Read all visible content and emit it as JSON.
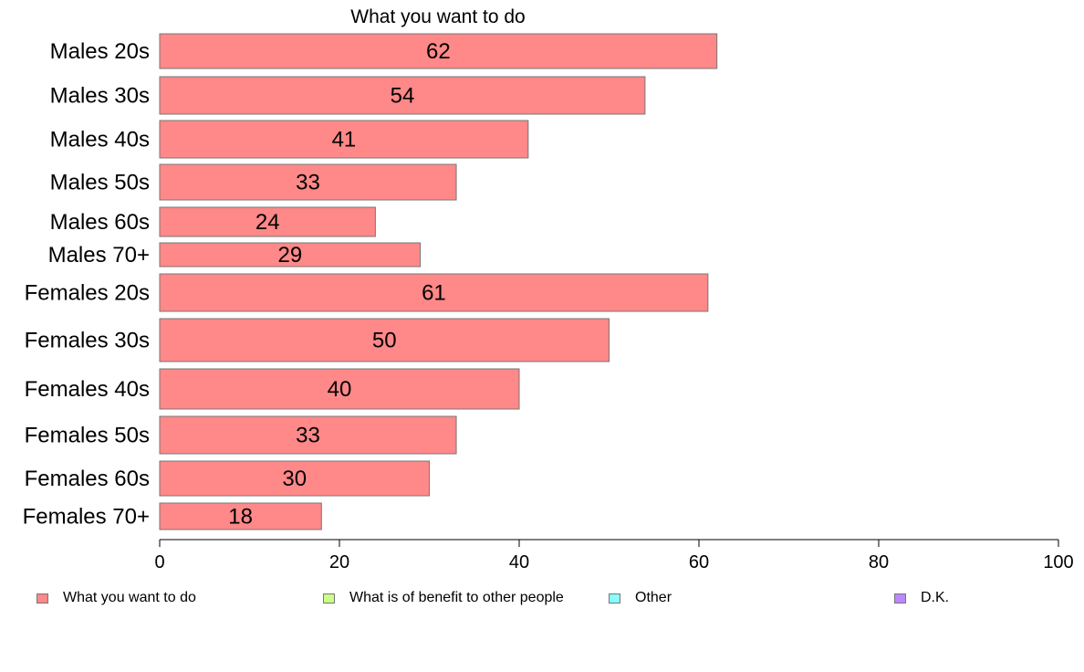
{
  "chart_data": {
    "type": "bar",
    "orientation": "horizontal",
    "title": "What you want to do",
    "categories": [
      "Males 20s",
      "Males 30s",
      "Males 40s",
      "Males 50s",
      "Males 60s",
      "Males 70+",
      "Females 20s",
      "Females 30s",
      "Females 40s",
      "Females 50s",
      "Females 60s",
      "Females 70+"
    ],
    "series": [
      {
        "name": "What you want to do",
        "color": "#ff8888",
        "values": [
          62,
          54,
          41,
          33,
          24,
          29,
          61,
          50,
          40,
          33,
          30,
          18
        ]
      }
    ],
    "data_labels": [
      "62",
      "54",
      "41",
      "33",
      "24",
      "29",
      "61",
      "50",
      "40",
      "33",
      "30",
      "18"
    ],
    "xlim": [
      0,
      100
    ],
    "xticks": [
      0,
      20,
      40,
      60,
      80,
      100
    ],
    "xtick_labels": [
      "0",
      "20",
      "40",
      "60",
      "80",
      "100"
    ],
    "grid": false,
    "legend_position": "bottom",
    "legend": [
      {
        "label": "What you want to do",
        "color": "#ff8888"
      },
      {
        "label": "What is of benefit to other people",
        "color": "#ccff88"
      },
      {
        "label": "Other",
        "color": "#88ffff"
      },
      {
        "label": "D.K.",
        "color": "#bb88ff"
      }
    ]
  }
}
